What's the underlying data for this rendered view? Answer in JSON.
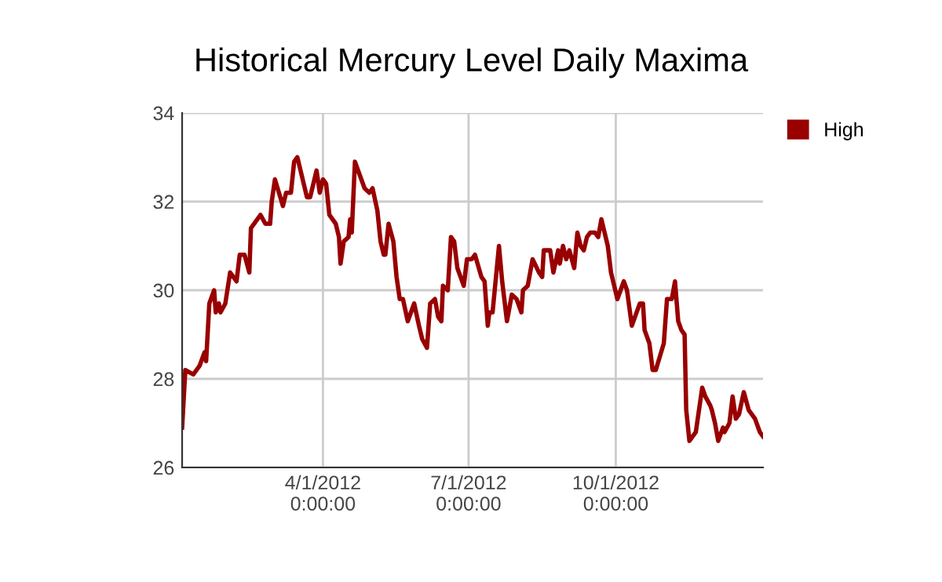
{
  "chart_data": {
    "type": "line",
    "title": "Historical Mercury Level Daily Maxima",
    "x": [
      "2012-01-04",
      "2012-01-06",
      "2012-01-11",
      "2012-01-15",
      "2012-01-18",
      "2012-01-19",
      "2012-01-21",
      "2012-01-24",
      "2012-01-25",
      "2012-01-27",
      "2012-01-28",
      "2012-01-31",
      "2012-02-03",
      "2012-02-07",
      "2012-02-09",
      "2012-02-12",
      "2012-02-15",
      "2012-02-16",
      "2012-02-22",
      "2012-02-25",
      "2012-02-28",
      "2012-02-29",
      "2012-03-02",
      "2012-03-07",
      "2012-03-09",
      "2012-03-12",
      "2012-03-14",
      "2012-03-16",
      "2012-03-18",
      "2012-03-22",
      "2012-03-24",
      "2012-03-28",
      "2012-03-30",
      "2012-04-01",
      "2012-04-03",
      "2012-04-05",
      "2012-04-09",
      "2012-04-11",
      "2012-04-12",
      "2012-04-14",
      "2012-04-17",
      "2012-04-18",
      "2012-04-19",
      "2012-04-21",
      "2012-04-25",
      "2012-04-27",
      "2012-04-30",
      "2012-05-02",
      "2012-05-05",
      "2012-05-07",
      "2012-05-09",
      "2012-05-10",
      "2012-05-12",
      "2012-05-15",
      "2012-05-17",
      "2012-05-19",
      "2012-05-21",
      "2012-05-24",
      "2012-05-28",
      "2012-05-31",
      "2012-06-02",
      "2012-06-05",
      "2012-06-07",
      "2012-06-10",
      "2012-06-12",
      "2012-06-14",
      "2012-06-15",
      "2012-06-18",
      "2012-06-20",
      "2012-06-22",
      "2012-06-24",
      "2012-06-26",
      "2012-06-28",
      "2012-06-30",
      "2012-07-03",
      "2012-07-05",
      "2012-07-09",
      "2012-07-11",
      "2012-07-13",
      "2012-07-14",
      "2012-07-16",
      "2012-07-20",
      "2012-07-22",
      "2012-07-25",
      "2012-07-28",
      "2012-07-31",
      "2012-08-03",
      "2012-08-04",
      "2012-08-07",
      "2012-08-10",
      "2012-08-14",
      "2012-08-16",
      "2012-08-17",
      "2012-08-21",
      "2012-08-23",
      "2012-08-26",
      "2012-08-27",
      "2012-08-29",
      "2012-08-31",
      "2012-09-02",
      "2012-09-05",
      "2012-09-07",
      "2012-09-09",
      "2012-09-11",
      "2012-09-13",
      "2012-09-15",
      "2012-09-18",
      "2012-09-20",
      "2012-09-22",
      "2012-09-26",
      "2012-09-28",
      "2012-10-02",
      "2012-10-06",
      "2012-10-08",
      "2012-10-11",
      "2012-10-15",
      "2012-10-16",
      "2012-10-18",
      "2012-10-19",
      "2012-10-22",
      "2012-10-24",
      "2012-10-26",
      "2012-10-31",
      "2012-11-02",
      "2012-11-05",
      "2012-11-07",
      "2012-11-09",
      "2012-11-11",
      "2012-11-13",
      "2012-11-14",
      "2012-11-16",
      "2012-11-20",
      "2012-11-24",
      "2012-11-26",
      "2012-11-29",
      "2012-11-30",
      "2012-12-02",
      "2012-12-04",
      "2012-12-07",
      "2012-12-08",
      "2012-12-11",
      "2012-12-13",
      "2012-12-15",
      "2012-12-17",
      "2012-12-20",
      "2012-12-23",
      "2012-12-27",
      "2012-12-30",
      "2013-01-01"
    ],
    "series": [
      {
        "name": "High",
        "color": "#990000",
        "values": [
          26.9,
          28.2,
          28.1,
          28.3,
          28.6,
          28.4,
          29.7,
          30.0,
          29.5,
          29.7,
          29.5,
          29.7,
          30.4,
          30.2,
          30.8,
          30.8,
          30.4,
          31.4,
          31.7,
          31.5,
          31.5,
          32.0,
          32.5,
          31.9,
          32.2,
          32.2,
          32.9,
          33.0,
          32.7,
          32.1,
          32.1,
          32.7,
          32.2,
          32.5,
          32.4,
          31.7,
          31.5,
          31.2,
          30.6,
          31.1,
          31.2,
          31.6,
          31.3,
          32.9,
          32.5,
          32.3,
          32.2,
          32.3,
          31.8,
          31.1,
          30.8,
          30.8,
          31.5,
          31.1,
          30.3,
          29.8,
          29.8,
          29.3,
          29.7,
          29.2,
          28.9,
          28.7,
          29.7,
          29.8,
          29.4,
          29.3,
          30.1,
          30.0,
          31.2,
          31.1,
          30.5,
          30.3,
          30.1,
          30.7,
          30.7,
          30.8,
          30.3,
          30.2,
          29.2,
          29.5,
          29.5,
          31.0,
          30.2,
          29.3,
          29.9,
          29.8,
          29.5,
          30.0,
          30.1,
          30.7,
          30.4,
          30.3,
          30.9,
          30.9,
          30.4,
          30.9,
          30.6,
          31.0,
          30.7,
          30.9,
          30.5,
          31.3,
          31.0,
          30.9,
          31.2,
          31.3,
          31.3,
          31.2,
          31.6,
          31.0,
          30.4,
          29.8,
          30.2,
          30.0,
          29.2,
          29.6,
          29.7,
          29.7,
          29.1,
          28.8,
          28.2,
          28.2,
          28.8,
          29.8,
          29.8,
          30.2,
          29.3,
          29.1,
          29.0,
          27.3,
          26.6,
          26.8,
          27.8,
          27.6,
          27.4,
          27.3,
          27.0,
          26.6,
          26.9,
          26.8,
          27.0,
          27.6,
          27.1,
          27.2,
          27.7,
          27.3,
          27.1,
          26.8,
          26.7
        ]
      }
    ],
    "xlim": [
      "2012-01-04",
      "2013-01-01"
    ],
    "xticks": [
      {
        "value": "2012-04-01",
        "label": "4/1/2012\n0:00:00"
      },
      {
        "value": "2012-07-01",
        "label": "7/1/2012\n0:00:00"
      },
      {
        "value": "2012-10-01",
        "label": "10/1/2012\n0:00:00"
      }
    ],
    "ylim": [
      26,
      34
    ],
    "yticks": [
      26,
      28,
      30,
      32,
      34
    ],
    "grid": true,
    "legend": "right",
    "marker": "none",
    "line_style": "solid"
  }
}
